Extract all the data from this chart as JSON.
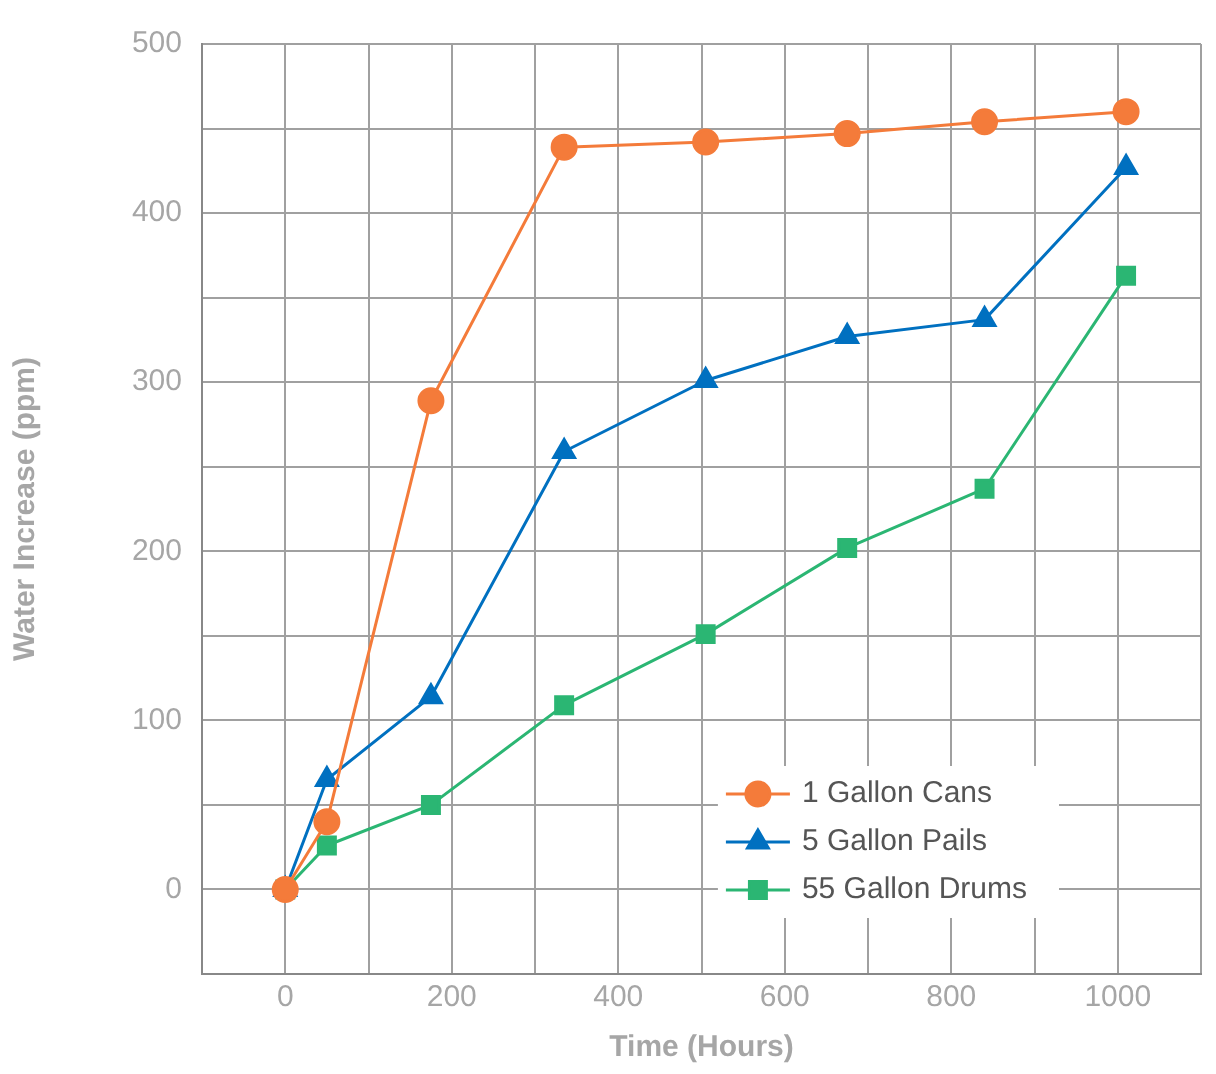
{
  "chart_data": {
    "type": "line",
    "xlabel": "Time (Hours)",
    "ylabel": "Water Increase (ppm)",
    "x": [
      0,
      50,
      175,
      335,
      505,
      675,
      840,
      1010
    ],
    "series": [
      {
        "name": "1 Gallon Cans",
        "color": "#f47b3a",
        "marker": "circle",
        "values": [
          0,
          40,
          289,
          439,
          442,
          447,
          454,
          460
        ]
      },
      {
        "name": "5 Gallon Pails",
        "color": "#0070c0",
        "marker": "triangle",
        "values": [
          0,
          65,
          114,
          259,
          301,
          327,
          337,
          427
        ]
      },
      {
        "name": "55 Gallon Drums",
        "color": "#2bb673",
        "marker": "square",
        "values": [
          0,
          26,
          50,
          109,
          151,
          202,
          237,
          363
        ]
      }
    ],
    "xlim": [
      -100,
      1100
    ],
    "xticks": [
      {
        "value": -100,
        "label": null
      },
      0,
      {
        "value": 100,
        "label": null
      },
      200,
      {
        "value": 300,
        "label": null
      },
      400,
      {
        "value": 500,
        "label": null
      },
      600,
      {
        "value": 700,
        "label": null
      },
      800,
      {
        "value": 900,
        "label": null
      },
      1000,
      {
        "value": 1100,
        "label": null
      }
    ],
    "ylim": [
      -50,
      500
    ],
    "yticks": [
      {
        "value": -50,
        "label": null
      },
      0,
      {
        "value": 50,
        "label": null
      },
      100,
      {
        "value": 150,
        "label": null
      },
      200,
      {
        "value": 250,
        "label": null
      },
      300,
      {
        "value": 350,
        "label": null
      },
      400,
      {
        "value": 450,
        "label": null
      },
      500
    ],
    "grid": true,
    "legend": "bottom right",
    "line_style": "solid"
  }
}
